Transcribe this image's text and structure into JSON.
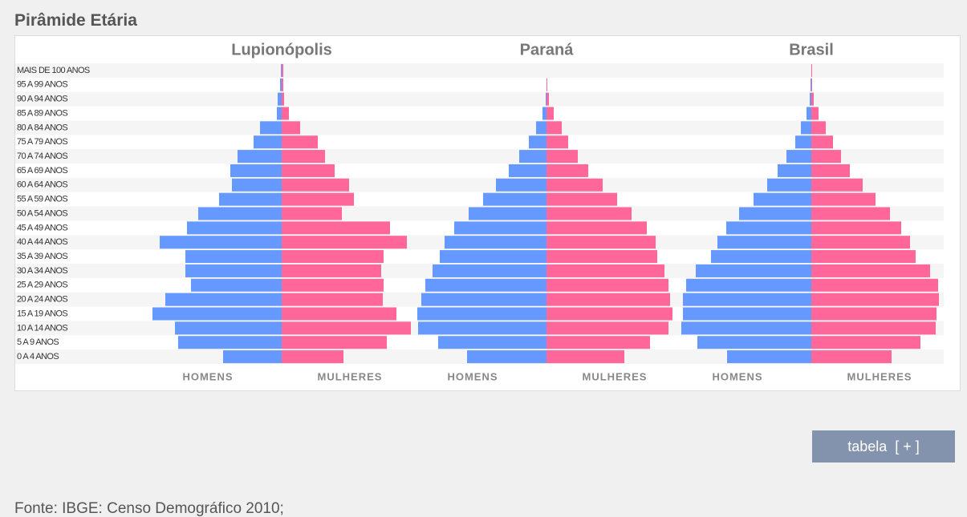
{
  "header": {
    "title": "Pirâmide Etária"
  },
  "chart_data": [
    {
      "type": "pyramid",
      "title": "Lupionópolis",
      "categories": [
        "MAIS DE 100 ANOS",
        "95 A 99 ANOS",
        "90 A 94 ANOS",
        "85 A 89 ANOS",
        "80 A 84 ANOS",
        "75 A 79 ANOS",
        "70 A 74 ANOS",
        "65 A 69 ANOS",
        "60 A 64 ANOS",
        "55 A 59 ANOS",
        "50 A 54 ANOS",
        "45 A 49 ANOS",
        "40 A 44 ANOS",
        "35 A 39 ANOS",
        "30 A 34 ANOS",
        "25 A 29 ANOS",
        "20 A 24 ANOS",
        "15 A 19 ANOS",
        "10 A 14 ANOS",
        "5 A 9 ANOS",
        "0 A 4 ANOS"
      ],
      "xlim": [
        0,
        170
      ],
      "series": [
        {
          "name": "HOMENS",
          "color": "#6699ff",
          "values": [
            1,
            2,
            5,
            6,
            27,
            35,
            55,
            64,
            62,
            78,
            104,
            118,
            152,
            120,
            120,
            113,
            145,
            161,
            133,
            129,
            73
          ]
        },
        {
          "name": "MULHERES",
          "color": "#ff6699",
          "values": [
            2,
            2,
            3,
            9,
            23,
            45,
            54,
            66,
            84,
            90,
            75,
            135,
            156,
            127,
            124,
            127,
            126,
            143,
            161,
            131,
            77
          ]
        }
      ]
    },
    {
      "type": "pyramid",
      "title": "Paraná",
      "xlim": [
        0,
        170
      ],
      "series": [
        {
          "name": "HOMENS",
          "color": "#6699ff",
          "values": [
            0,
            0,
            1,
            5,
            13,
            22,
            34,
            47,
            63,
            79,
            97,
            115,
            127,
            133,
            142,
            151,
            156,
            161,
            160,
            135,
            99
          ]
        },
        {
          "name": "MULHERES",
          "color": "#ff6699",
          "values": [
            0,
            1,
            3,
            9,
            19,
            27,
            39,
            52,
            70,
            88,
            106,
            125,
            136,
            138,
            147,
            152,
            154,
            157,
            152,
            129,
            97
          ]
        }
      ]
    },
    {
      "type": "pyramid",
      "title": "Brasil",
      "xlim": [
        0,
        170
      ],
      "series": [
        {
          "name": "HOMENS",
          "color": "#6699ff",
          "values": [
            0,
            1,
            2,
            6,
            13,
            20,
            31,
            42,
            55,
            72,
            90,
            106,
            117,
            125,
            144,
            156,
            160,
            160,
            162,
            142,
            105
          ]
        },
        {
          "name": "MULHERES",
          "color": "#ff6699",
          "values": [
            1,
            1,
            3,
            9,
            18,
            27,
            37,
            48,
            64,
            80,
            98,
            112,
            123,
            130,
            148,
            158,
            159,
            156,
            155,
            136,
            100
          ]
        }
      ]
    }
  ],
  "button": {
    "label": "tabela  [ + ]"
  },
  "footer": {
    "source": "Fonte: IBGE: Censo Demográfico 2010;"
  }
}
